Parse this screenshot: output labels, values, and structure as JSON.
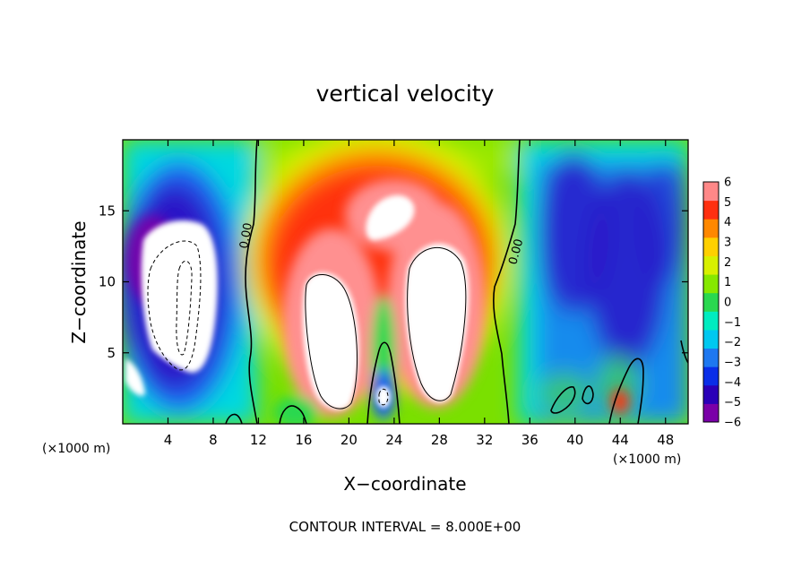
{
  "chart_data": {
    "type": "heatmap",
    "title": "vertical velocity",
    "xlabel": "X−coordinate",
    "ylabel": "Z−coordinate",
    "x_unit_left": "(×1000 m)",
    "x_unit_right": "(×1000 m)",
    "xlim": [
      0,
      50
    ],
    "ylim": [
      0,
      20
    ],
    "x_ticks": [
      4,
      8,
      12,
      16,
      20,
      24,
      28,
      32,
      36,
      40,
      44,
      48
    ],
    "y_ticks": [
      5,
      10,
      15
    ],
    "colorbar": {
      "ticks": [
        6,
        5,
        4,
        3,
        2,
        1,
        0,
        -1,
        -2,
        -3,
        -4,
        -5,
        -6
      ],
      "tick_labels": [
        "6",
        "5",
        "4",
        "3",
        "2",
        "1",
        "0",
        "−1",
        "−2",
        "−3",
        "−4",
        "−5",
        "−6"
      ],
      "colors": [
        "#7a00a8",
        "#2a00b8",
        "#0a2ee8",
        "#1e78f0",
        "#00c8f0",
        "#00ecc0",
        "#2ad850",
        "#86e800",
        "#d8f000",
        "#ffd000",
        "#ff8800",
        "#ff3010",
        "#ff8888"
      ],
      "range": [
        -6,
        6
      ]
    },
    "contour_labels": [
      "0.00",
      "0.00"
    ],
    "contour_interval_text": "CONTOUR INTERVAL = 8.000E+00",
    "features": [
      {
        "name": "updraft left core",
        "x": 19.5,
        "z": 7,
        "value": 8
      },
      {
        "name": "updraft right core",
        "x": 27.5,
        "z": 8.5,
        "value": 8
      },
      {
        "name": "downdraft left region",
        "x": 5.5,
        "z": 8,
        "value": -8
      },
      {
        "name": "downdraft right region",
        "x": 43,
        "z": 10,
        "value": -5
      }
    ]
  },
  "colors": {
    "background": "#ffffff",
    "field_base": "#7ae000",
    "saturated_high": "#ffffff",
    "saturated_low": "#ffffff"
  }
}
